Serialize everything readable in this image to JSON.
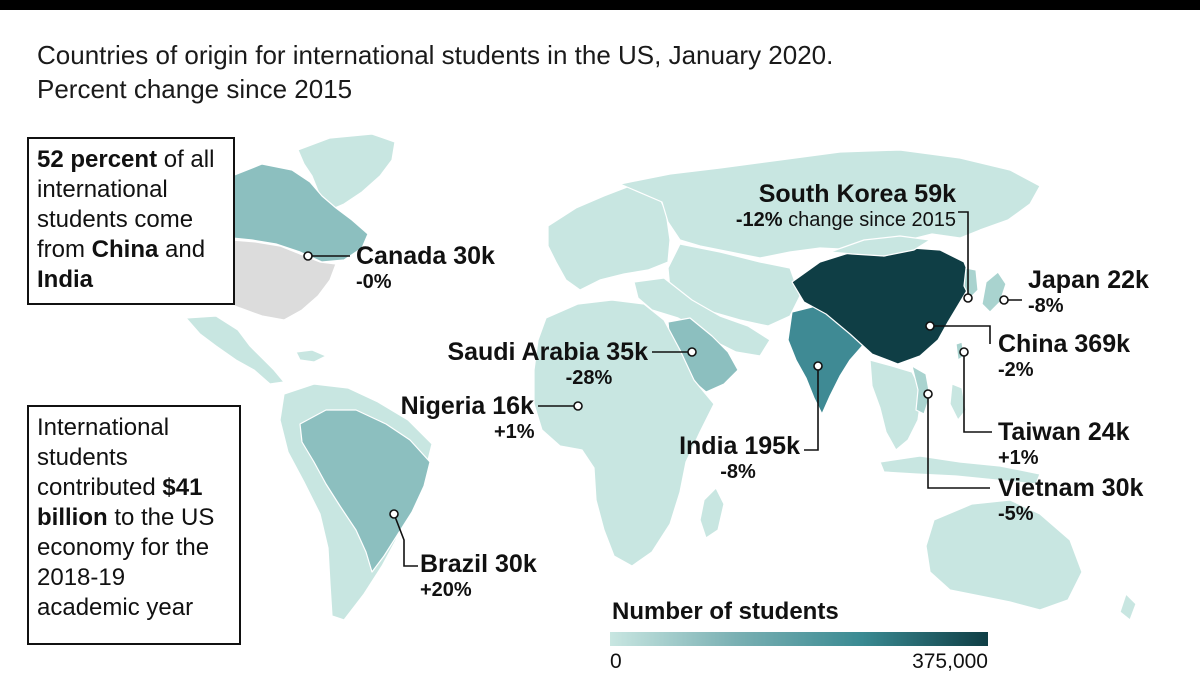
{
  "title": {
    "line1": "Countries of origin for international students in the US, January 2020.",
    "line2": "Percent change since 2015"
  },
  "note_share": {
    "bold1": "52 percent",
    "text1": " of all international students come from ",
    "bold2": "China",
    "text2": " and ",
    "bold3": "India"
  },
  "note_economy": {
    "text1": "International students contributed ",
    "bold1": "$41 billion",
    "text2": " to the US economy for the 2018-19 academic year"
  },
  "countries": {
    "south_korea": {
      "name": "South Korea 59k",
      "pct": "-12%",
      "pct_suffix": " change since 2015",
      "students": 59000
    },
    "japan": {
      "name": "Japan 22k",
      "pct": "-8%",
      "students": 22000
    },
    "china": {
      "name": "China 369k",
      "pct": "-2%",
      "students": 369000
    },
    "taiwan": {
      "name": "Taiwan 24k",
      "pct": "+1%",
      "students": 24000
    },
    "vietnam": {
      "name": "Vietnam 30k",
      "pct": "-5%",
      "students": 30000
    },
    "india": {
      "name": "India 195k",
      "pct": "-8%",
      "students": 195000
    },
    "saudi_arabia": {
      "name": "Saudi Arabia 35k",
      "pct": "-28%",
      "students": 35000
    },
    "nigeria": {
      "name": "Nigeria 16k",
      "pct": "+1%",
      "students": 16000
    },
    "canada": {
      "name": "Canada 30k",
      "pct": "-0%",
      "students": 30000
    },
    "brazil": {
      "name": "Brazil 30k",
      "pct": "+20%",
      "students": 30000
    }
  },
  "legend": {
    "title": "Number of students",
    "min": "0",
    "max": "375,000",
    "color_low": "#c8e6e1",
    "color_high": "#0f3e45"
  },
  "colors": {
    "land_default": "#c8e6e1",
    "united_states": "#dcdcdc",
    "china": "#0f3e45",
    "india": "#3f8a94",
    "mid_tier": "#8cbfbf"
  }
}
